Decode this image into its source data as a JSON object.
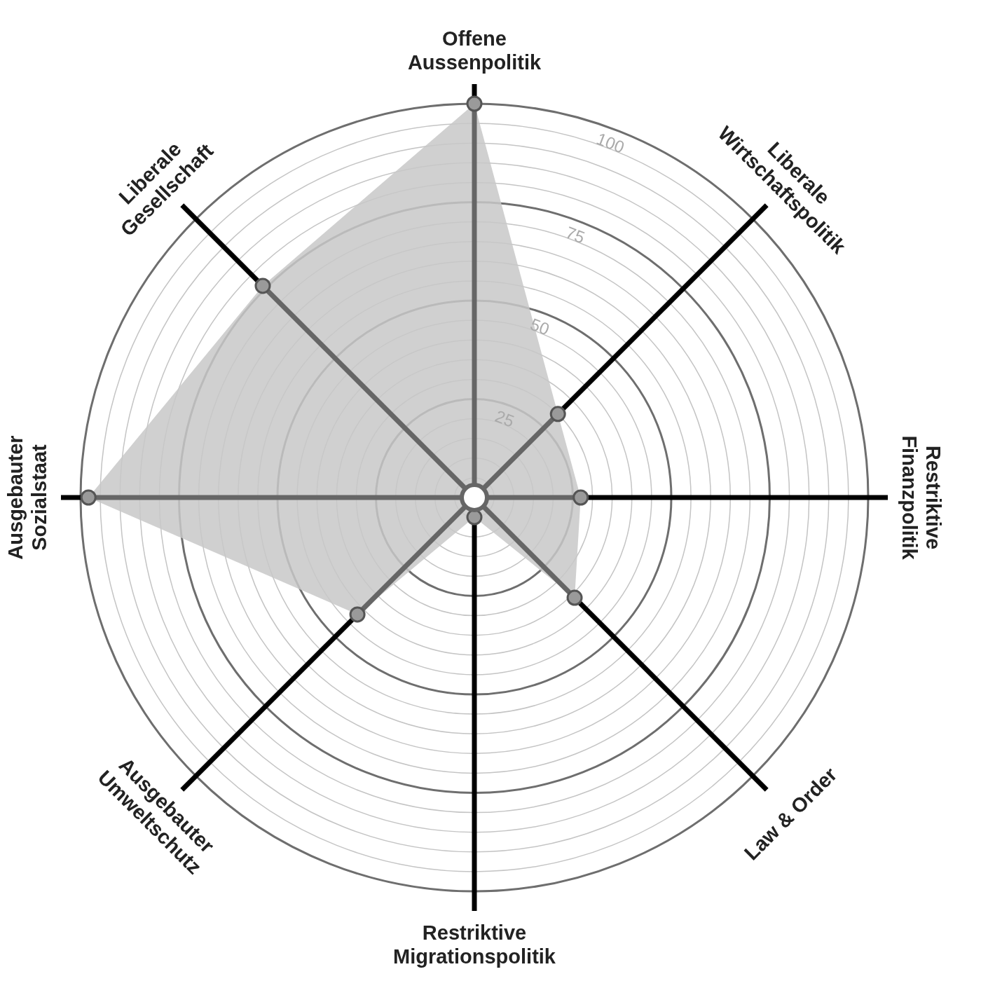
{
  "chart_data": {
    "type": "radar",
    "categories": [
      "Offene Aussenpolitik",
      "Liberale Wirtschaftspolitik",
      "Restriktive Finanzpolitik",
      "Law & Order",
      "Restriktive Migrationspolitik",
      "Ausgebauter Umweltschutz",
      "Ausgebauter Sozialstaat",
      "Liberale Gesellschaft"
    ],
    "series": [
      {
        "color": "#c8c8c8",
        "values": [
          100,
          30,
          27,
          36,
          5,
          42,
          98,
          76
        ]
      }
    ],
    "ylim": [
      0,
      100
    ],
    "yticks": [
      25,
      50,
      75,
      100
    ],
    "grid": true,
    "marker": "circle"
  }
}
